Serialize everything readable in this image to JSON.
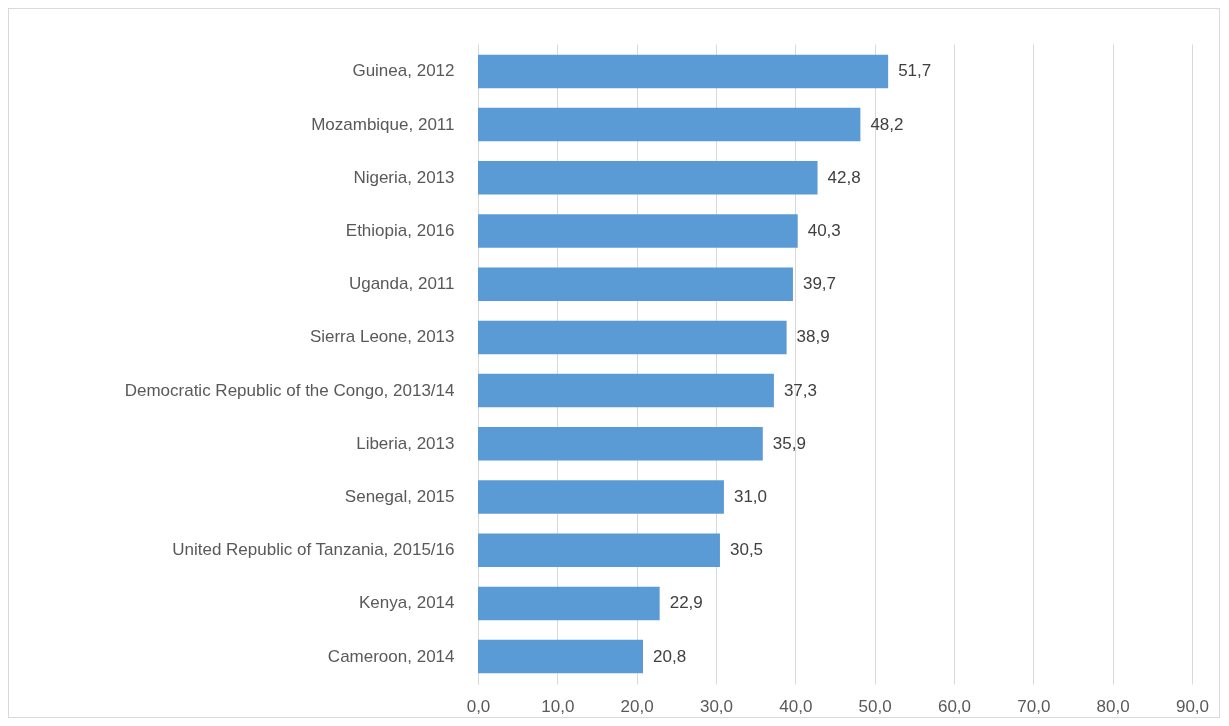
{
  "chart_data": {
    "type": "bar",
    "orientation": "horizontal",
    "categories": [
      "Guinea, 2012",
      "Mozambique, 2011",
      "Nigeria, 2013",
      "Ethiopia, 2016",
      "Uganda, 2011",
      "Sierra Leone, 2013",
      "Democratic Republic of the Congo, 2013/14",
      "Liberia, 2013",
      "Senegal, 2015",
      "United Republic of Tanzania, 2015/16",
      "Kenya, 2014",
      "Cameroon, 2014"
    ],
    "values": [
      51.7,
      48.2,
      42.8,
      40.3,
      39.7,
      38.9,
      37.3,
      35.9,
      31.0,
      30.5,
      22.9,
      20.8
    ],
    "value_labels": [
      "51,7",
      "48,2",
      "42,8",
      "40,3",
      "39,7",
      "38,9",
      "37,3",
      "35,9",
      "31,0",
      "30,5",
      "22,9",
      "20,8"
    ],
    "color": "#5b9bd5",
    "xlim": [
      0,
      90
    ],
    "xticks": [
      {
        "value": 0,
        "label": "0,0"
      },
      {
        "value": 10,
        "label": "10,0"
      },
      {
        "value": 20,
        "label": "20,0"
      },
      {
        "value": 30,
        "label": "30,0"
      },
      {
        "value": 40,
        "label": "40,0"
      },
      {
        "value": 50,
        "label": "50,0"
      },
      {
        "value": 60,
        "label": "60,0"
      },
      {
        "value": 70,
        "label": "70,0"
      },
      {
        "value": 80,
        "label": "80,0"
      },
      {
        "value": 90,
        "label": "90,0"
      }
    ],
    "grid": "x"
  }
}
